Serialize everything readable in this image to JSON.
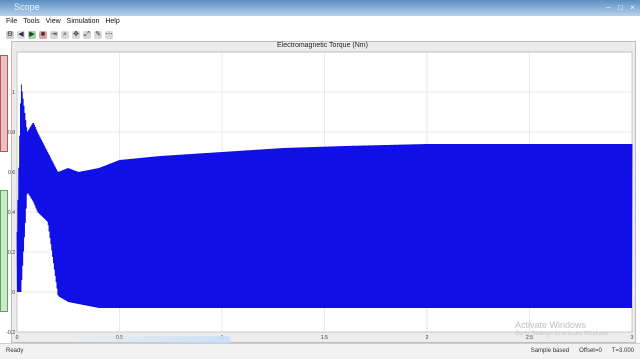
{
  "window": {
    "title": "Scope"
  },
  "menu": [
    "File",
    "Tools",
    "View",
    "Simulation",
    "Help"
  ],
  "toolbar_icons": [
    "settings-icon",
    "back-icon",
    "run-icon",
    "stop-icon",
    "step-icon",
    "zoom-icon",
    "pan-icon",
    "autoscale-icon",
    "cursor-icon",
    "tools-icon"
  ],
  "plot": {
    "title": "Electromagnetic Torque (Nm)"
  },
  "chart_data": {
    "type": "line",
    "title": "Electromagnetic Torque (Nm)",
    "xlabel": "",
    "ylabel": "",
    "xlim": [
      0,
      3
    ],
    "ylim": [
      -0.2,
      1.2
    ],
    "xticks": [
      "0",
      "0.5",
      "1",
      "1.5",
      "2",
      "2.5",
      "3"
    ],
    "yticks": [
      "-0.2",
      "0",
      "0.2",
      "0.4",
      "0.6",
      "0.8",
      "1"
    ],
    "grid": true,
    "series": [
      {
        "color": "#1010e6",
        "x": [
          0,
          0.02,
          0.05,
          0.08,
          0.1,
          0.15,
          0.2,
          0.25,
          0.3,
          0.4,
          0.5,
          0.7,
          1.0,
          1.3,
          1.6,
          2.0,
          2.5,
          3.0
        ],
        "y_upper": [
          0.3,
          1.05,
          0.8,
          0.85,
          0.8,
          0.7,
          0.6,
          0.62,
          0.6,
          0.62,
          0.66,
          0.68,
          0.7,
          0.72,
          0.73,
          0.74,
          0.74,
          0.74
        ],
        "y_lower": [
          0.0,
          0.0,
          0.5,
          0.45,
          0.4,
          0.35,
          -0.02,
          -0.05,
          -0.06,
          -0.08,
          -0.08,
          -0.08,
          -0.08,
          -0.08,
          -0.08,
          -0.08,
          -0.08,
          -0.08
        ]
      }
    ]
  },
  "status": {
    "left": "Ready",
    "sample": "Sample based",
    "offset": "Offset=0",
    "time": "T=3.000"
  },
  "watermark": {
    "line1": "Activate Windows",
    "line2": "Go to Settings to activate Windows."
  }
}
